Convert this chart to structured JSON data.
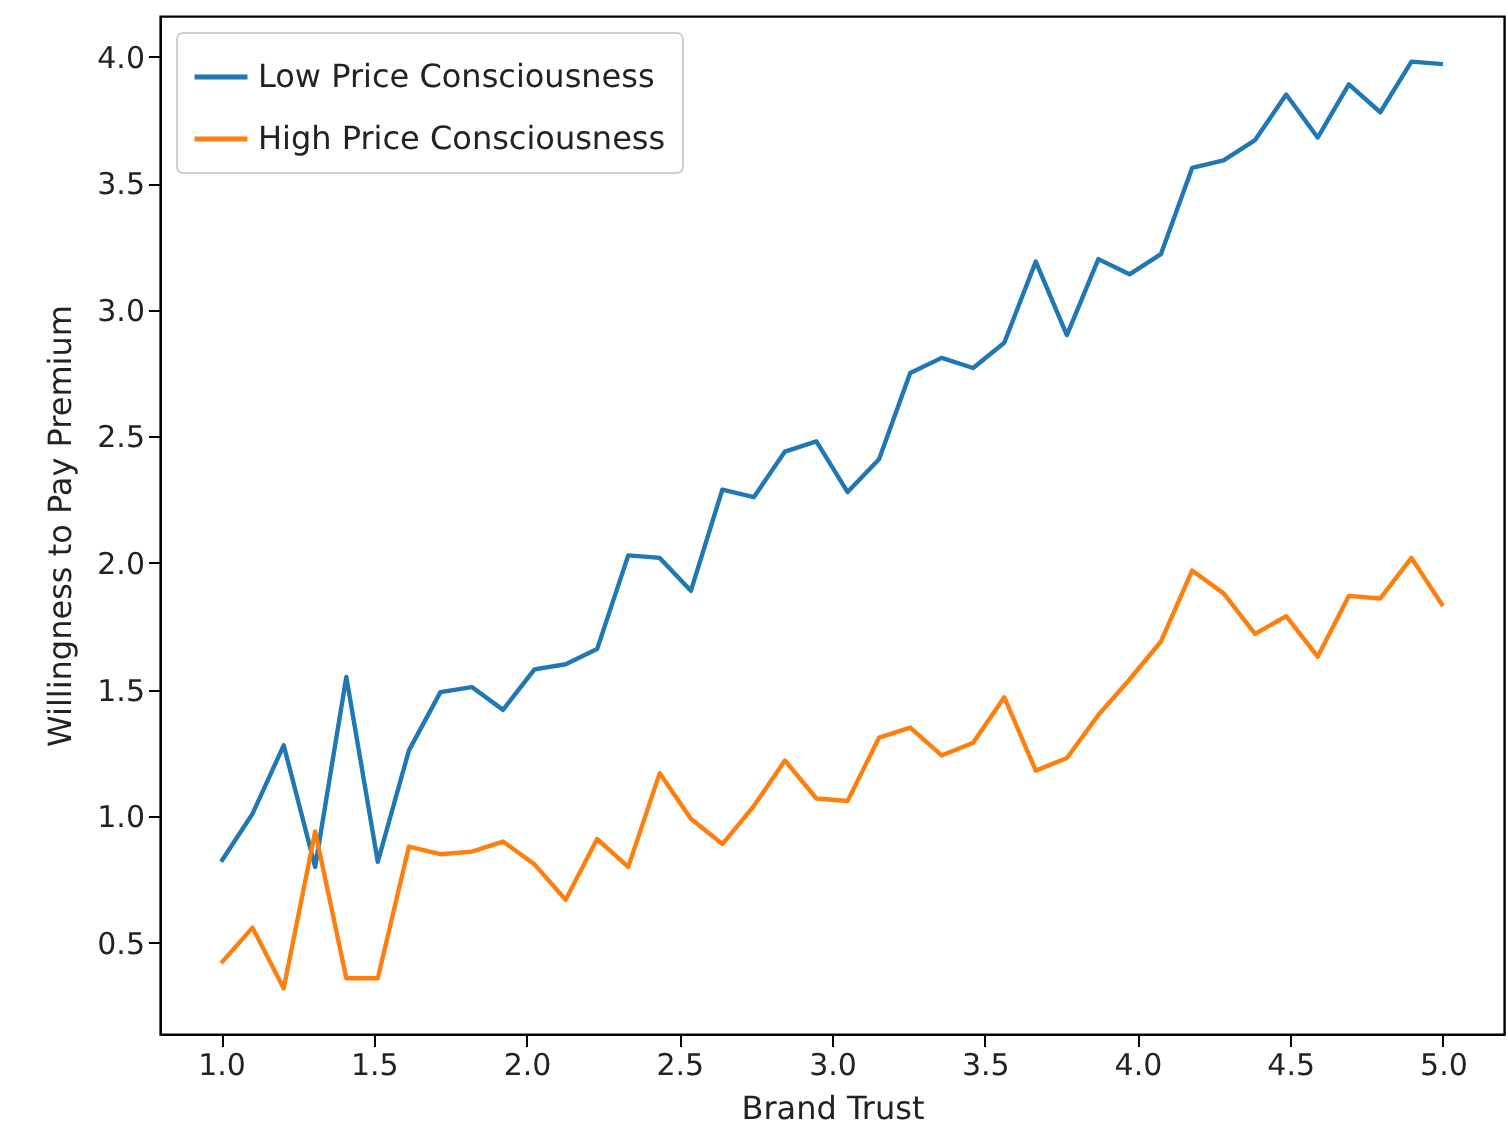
{
  "chart_data": {
    "type": "line",
    "xlabel": "Brand Trust",
    "ylabel": "Willingness to Pay Premium",
    "x": [
      1,
      1.103,
      1.205,
      1.308,
      1.41,
      1.513,
      1.615,
      1.718,
      1.821,
      1.923,
      2.026,
      2.128,
      2.231,
      2.333,
      2.436,
      2.538,
      2.641,
      2.744,
      2.846,
      2.949,
      3.051,
      3.154,
      3.256,
      3.359,
      3.462,
      3.564,
      3.667,
      3.769,
      3.872,
      3.974,
      4.077,
      4.179,
      4.282,
      4.385,
      4.487,
      4.59,
      4.692,
      4.795,
      4.897,
      5
    ],
    "series": [
      {
        "name": "Low Price Consciousness",
        "color": "#1f77b4",
        "values": [
          0.82,
          1.01,
          1.28,
          0.8,
          1.55,
          0.82,
          1.26,
          1.49,
          1.51,
          1.42,
          1.58,
          1.6,
          1.66,
          2.03,
          2.02,
          1.89,
          2.29,
          2.26,
          2.44,
          2.48,
          2.28,
          2.41,
          2.75,
          2.81,
          2.77,
          2.87,
          3.19,
          2.9,
          3.2,
          3.14,
          3.22,
          3.56,
          3.59,
          3.67,
          3.85,
          3.68,
          3.89,
          3.78,
          3.98,
          3.97
        ]
      },
      {
        "name": "High Price Consciousness",
        "color": "#ff7f0e",
        "values": [
          0.42,
          0.56,
          0.32,
          0.94,
          0.36,
          0.36,
          0.88,
          0.85,
          0.86,
          0.9,
          0.81,
          0.67,
          0.91,
          0.8,
          1.17,
          0.99,
          0.89,
          1.04,
          1.22,
          1.07,
          1.06,
          1.31,
          1.35,
          1.24,
          1.29,
          1.47,
          1.18,
          1.23,
          1.4,
          1.54,
          1.69,
          1.97,
          1.88,
          1.72,
          1.79,
          1.63,
          1.87,
          1.86,
          2.02,
          1.83
        ]
      }
    ],
    "xlim": [
      0.8,
      5.2
    ],
    "xticks": [
      {
        "value": 1,
        "label": "1.0"
      },
      1.5,
      {
        "value": 2,
        "label": "2.0"
      },
      2.5,
      {
        "value": 3,
        "label": "3.0"
      },
      3.5,
      {
        "value": 4,
        "label": "4.0"
      },
      4.5,
      {
        "value": 5,
        "label": "5.0"
      }
    ],
    "ylim": [
      0.14,
      4.16
    ],
    "yticks": [
      0.5,
      {
        "value": 1,
        "label": "1.0"
      },
      1.5,
      {
        "value": 2,
        "label": "2.0"
      },
      2.5,
      {
        "value": 3,
        "label": "3.0"
      },
      3.5,
      {
        "value": 4,
        "label": "4.0"
      }
    ],
    "grid": false,
    "legend": "top left",
    "marker": "none",
    "line_style": "solid"
  }
}
